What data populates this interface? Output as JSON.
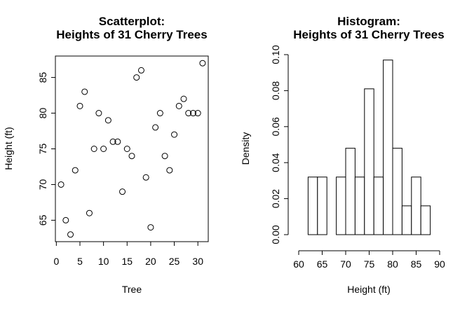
{
  "chart_data": [
    {
      "type": "scatter",
      "title": "Scatterplot:",
      "subtitle": "Heights of 31 Cherry Trees",
      "xlabel": "Tree",
      "ylabel": "Height (ft)",
      "xlim": [
        -0.2,
        32.2
      ],
      "ylim": [
        62.0,
        88.0
      ],
      "x_ticks": [
        0,
        5,
        10,
        15,
        20,
        25,
        30
      ],
      "y_ticks": [
        65,
        70,
        75,
        80,
        85
      ],
      "grid": false,
      "x": [
        1,
        2,
        3,
        4,
        5,
        6,
        7,
        8,
        9,
        10,
        11,
        12,
        13,
        14,
        15,
        16,
        17,
        18,
        19,
        20,
        21,
        22,
        23,
        24,
        25,
        26,
        27,
        28,
        29,
        30,
        31
      ],
      "y": [
        70,
        65,
        63,
        72,
        81,
        83,
        66,
        75,
        80,
        75,
        79,
        76,
        76,
        69,
        75,
        74,
        85,
        86,
        71,
        64,
        78,
        80,
        74,
        72,
        77,
        81,
        82,
        80,
        80,
        80,
        87
      ]
    },
    {
      "type": "bar",
      "subtype": "histogram",
      "title": "Histogram:",
      "subtitle": "Heights of 31 Cherry Trees",
      "xlabel": "Height (ft)",
      "ylabel": "Density",
      "xlim": [
        60,
        90
      ],
      "ylim": [
        0,
        0.1
      ],
      "x_ticks": [
        60,
        65,
        70,
        75,
        80,
        85,
        90
      ],
      "y_ticks": [
        0.0,
        0.02,
        0.04,
        0.06,
        0.08,
        0.1
      ],
      "y_tick_labels": [
        "0.00",
        "0.02",
        "0.04",
        "0.06",
        "0.08",
        "0.10"
      ],
      "grid": false,
      "bins": [
        {
          "from": 62,
          "to": 64,
          "density": 0.032
        },
        {
          "from": 64,
          "to": 66,
          "density": 0.032
        },
        {
          "from": 66,
          "to": 68,
          "density": 0.0
        },
        {
          "from": 68,
          "to": 70,
          "density": 0.032
        },
        {
          "from": 70,
          "to": 72,
          "density": 0.048
        },
        {
          "from": 72,
          "to": 74,
          "density": 0.032
        },
        {
          "from": 74,
          "to": 76,
          "density": 0.081
        },
        {
          "from": 76,
          "to": 78,
          "density": 0.032
        },
        {
          "from": 78,
          "to": 80,
          "density": 0.097
        },
        {
          "from": 80,
          "to": 82,
          "density": 0.048
        },
        {
          "from": 82,
          "to": 84,
          "density": 0.016
        },
        {
          "from": 84,
          "to": 86,
          "density": 0.032
        },
        {
          "from": 86,
          "to": 88,
          "density": 0.016
        }
      ]
    }
  ]
}
